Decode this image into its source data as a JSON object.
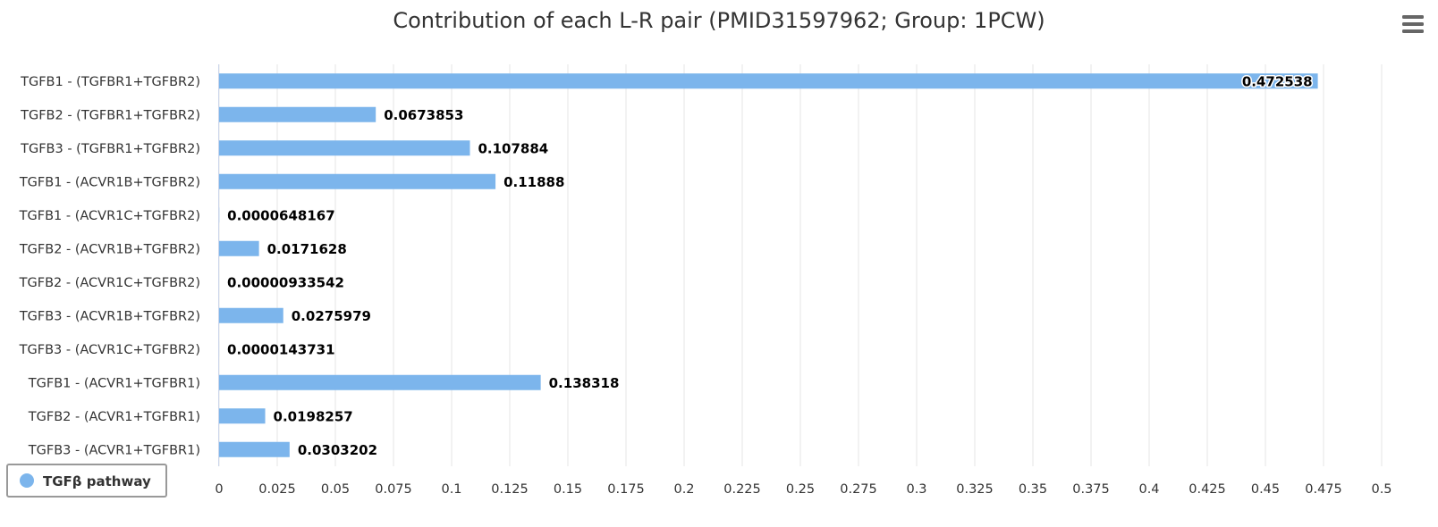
{
  "chart_data": {
    "type": "bar",
    "orientation": "horizontal",
    "title": "Contribution of each L-R pair (PMID31597962; Group: 1PCW)",
    "xlabel": "",
    "ylabel": "",
    "categories": [
      "TGFB1 - (TGFBR1+TGFBR2)",
      "TGFB2 - (TGFBR1+TGFBR2)",
      "TGFB3 - (TGFBR1+TGFBR2)",
      "TGFB1 - (ACVR1B+TGFBR2)",
      "TGFB1 - (ACVR1C+TGFBR2)",
      "TGFB2 - (ACVR1B+TGFBR2)",
      "TGFB2 - (ACVR1C+TGFBR2)",
      "TGFB3 - (ACVR1B+TGFBR2)",
      "TGFB3 - (ACVR1C+TGFBR2)",
      "TGFB1 - (ACVR1+TGFBR1)",
      "TGFB2 - (ACVR1+TGFBR1)",
      "TGFB3 - (ACVR1+TGFBR1)"
    ],
    "series": [
      {
        "name": "TGFβ pathway",
        "color": "#7cb5ec",
        "values": [
          0.472538,
          0.0673853,
          0.107884,
          0.11888,
          6.48167e-05,
          0.0171628,
          9.33542e-06,
          0.0275979,
          1.43731e-05,
          0.138318,
          0.0198257,
          0.0303202
        ],
        "labels": [
          "0.472538",
          "0.0673853",
          "0.107884",
          "0.11888",
          "0.0000648167",
          "0.0171628",
          "0.00000933542",
          "0.0275979",
          "0.0000143731",
          "0.138318",
          "0.0198257",
          "0.0303202"
        ]
      }
    ],
    "xlim": [
      0,
      0.5
    ],
    "ticks": [
      "0",
      "0.025",
      "0.05",
      "0.075",
      "0.1",
      "0.125",
      "0.15",
      "0.175",
      "0.2",
      "0.225",
      "0.25",
      "0.275",
      "0.3",
      "0.325",
      "0.35",
      "0.375",
      "0.4",
      "0.425",
      "0.45",
      "0.475",
      "0.5"
    ],
    "tick_values": [
      0,
      0.025,
      0.05,
      0.075,
      0.1,
      0.125,
      0.15,
      0.175,
      0.2,
      0.225,
      0.25,
      0.275,
      0.3,
      0.325,
      0.35,
      0.375,
      0.4,
      0.425,
      0.45,
      0.475,
      0.5
    ],
    "grid": true,
    "legend": {
      "position": "bottom-left",
      "label": "TGFβ pathway"
    }
  },
  "colors": {
    "bar": "#7cb5ec",
    "grid": "#e6e6e6",
    "text": "#333333",
    "menu_icon": "#666666"
  },
  "icons": {
    "menu": "hamburger-menu-icon",
    "legend_symbol": "circle"
  }
}
